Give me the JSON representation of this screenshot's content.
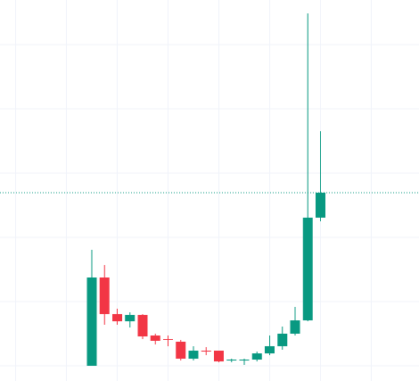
{
  "chart_data": {
    "type": "candlestick",
    "categories": [
      null,
      null,
      null,
      null,
      null,
      null,
      null,
      null,
      null,
      null,
      null,
      null,
      null,
      null,
      null,
      null,
      null,
      null,
      null
    ],
    "open": [
      0,
      1.375,
      0.806,
      0.694,
      0.792,
      0.472,
      0.417,
      0.375,
      0.111,
      0.236,
      0.236,
      0.083,
      0.083,
      0.097,
      0.194,
      0.306,
      0.5,
      0.708,
      2.306
    ],
    "high": [
      1.806,
      1.569,
      0.889,
      0.833,
      0.806,
      0.5,
      0.472,
      0.403,
      0.306,
      0.292,
      0.236,
      0.111,
      0.111,
      0.222,
      0.472,
      0.611,
      0.917,
      5.486,
      3.653
    ],
    "low": [
      0,
      0.639,
      0.639,
      0.597,
      0.417,
      0.333,
      0.306,
      0.083,
      0.083,
      0.167,
      0.056,
      0.056,
      0.014,
      0.069,
      0.167,
      0.25,
      0.472,
      0.694,
      2.25
    ],
    "close": [
      1.375,
      0.806,
      0.694,
      0.792,
      0.458,
      0.389,
      0.403,
      0.111,
      0.236,
      0.222,
      0.069,
      0.097,
      0.097,
      0.194,
      0.306,
      0.5,
      0.708,
      2.306,
      2.694
    ],
    "up_color": "#089981",
    "down_color": "#f23645",
    "ylim": [
      -0.236,
      5.694
    ],
    "yticks": [
      0,
      1,
      2,
      3,
      4,
      5
    ],
    "grid": true
  }
}
